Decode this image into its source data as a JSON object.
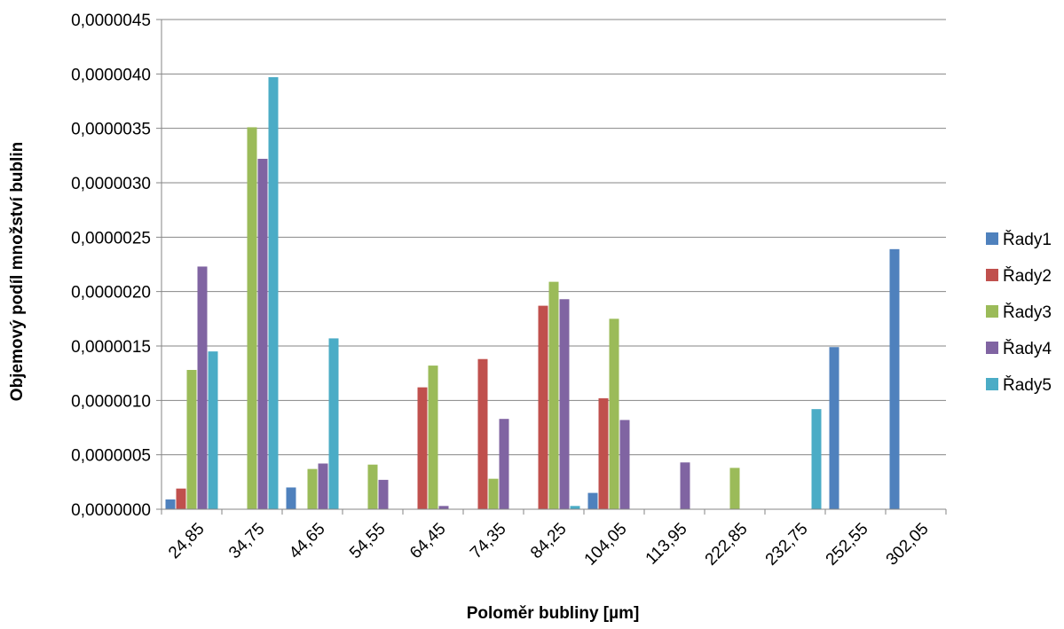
{
  "chart_data": {
    "type": "bar",
    "title": "",
    "xlabel": "Poloměr bubliny  [µm]",
    "ylabel": "Objemový podíl množství bublin",
    "ylim": [
      0,
      4.5e-06
    ],
    "yticks": [
      "0,0000000",
      "0,0000005",
      "0,0000010",
      "0,0000015",
      "0,0000020",
      "0,0000025",
      "0,0000030",
      "0,0000035",
      "0,0000040",
      "0,0000045"
    ],
    "categories": [
      "24,85",
      "34,75",
      "44,65",
      "54,55",
      "64,45",
      "74,35",
      "84,25",
      "104,05",
      "113,95",
      "222,85",
      "232,75",
      "252,55",
      "302,05"
    ],
    "grid": true,
    "legend_position": "right",
    "series": [
      {
        "name": "Řady1",
        "color": "#4F81BD",
        "values": [
          9e-08,
          0,
          2e-07,
          0,
          0,
          0,
          0,
          1.5e-07,
          0,
          0,
          0,
          1.49e-06,
          2.39e-06
        ]
      },
      {
        "name": "Řady2",
        "color": "#C0504D",
        "values": [
          1.9e-07,
          0,
          0,
          0,
          1.12e-06,
          1.38e-06,
          1.87e-06,
          1.02e-06,
          0,
          0,
          0,
          0,
          0
        ]
      },
      {
        "name": "Řady3",
        "color": "#9BBB59",
        "values": [
          1.28e-06,
          3.51e-06,
          3.7e-07,
          4.1e-07,
          1.32e-06,
          2.8e-07,
          2.09e-06,
          1.75e-06,
          0,
          3.8e-07,
          0,
          0,
          0
        ]
      },
      {
        "name": "Řady4",
        "color": "#8064A2",
        "values": [
          2.23e-06,
          3.22e-06,
          4.2e-07,
          2.7e-07,
          3e-08,
          8.3e-07,
          1.93e-06,
          8.2e-07,
          4.3e-07,
          0,
          0,
          0,
          0
        ]
      },
      {
        "name": "Řady5",
        "color": "#4BACC6",
        "values": [
          1.45e-06,
          3.97e-06,
          1.57e-06,
          0,
          0,
          0,
          3e-08,
          0,
          0,
          0,
          9.2e-07,
          0,
          0
        ]
      }
    ]
  }
}
